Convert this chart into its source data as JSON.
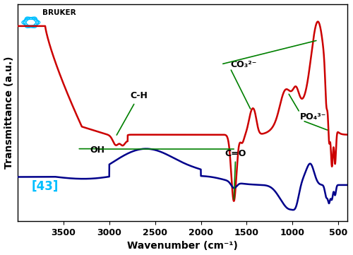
{
  "xlabel": "Wavenumber (cm⁻¹)",
  "ylabel": "Transmittance (a.u.)",
  "xlim": [
    4000,
    400
  ],
  "xticks": [
    3500,
    3000,
    2500,
    2000,
    1500,
    1000,
    500
  ],
  "xticklabels": [
    "3500",
    "3000",
    "2500",
    "2000",
    "1500",
    "1000",
    "500"
  ],
  "red_color": "#cc0000",
  "blue_color": "#00008B",
  "ann_color": "green",
  "ref_label": "[43]",
  "ref_color": "#00BFFF",
  "bruker_color": "#000000",
  "logo_color": "#00BFFF"
}
